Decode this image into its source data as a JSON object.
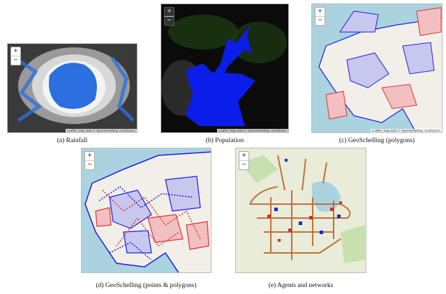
{
  "panels": [
    {
      "caption": "(a) Rainfall",
      "zoom_in": "+",
      "zoom_out": "−",
      "attribution": "Leaflet | Map data © OpenStreetMap contributors"
    },
    {
      "caption": "(b) Population",
      "zoom_in": "+",
      "zoom_out": "−",
      "attribution": "Leaflet | Map data © OpenStreetMap contributors"
    },
    {
      "caption": "(c) GeoSchelling (polygons)",
      "zoom_in": "+",
      "zoom_out": "−",
      "attribution": "Leaflet | Map data © OpenStreetMap contributors"
    },
    {
      "caption": "(d) GeoSchelling (points & polygons)",
      "zoom_in": "+",
      "zoom_out": "−"
    },
    {
      "caption": "(e) Agents and networks",
      "zoom_in": "+",
      "zoom_out": "−"
    }
  ]
}
